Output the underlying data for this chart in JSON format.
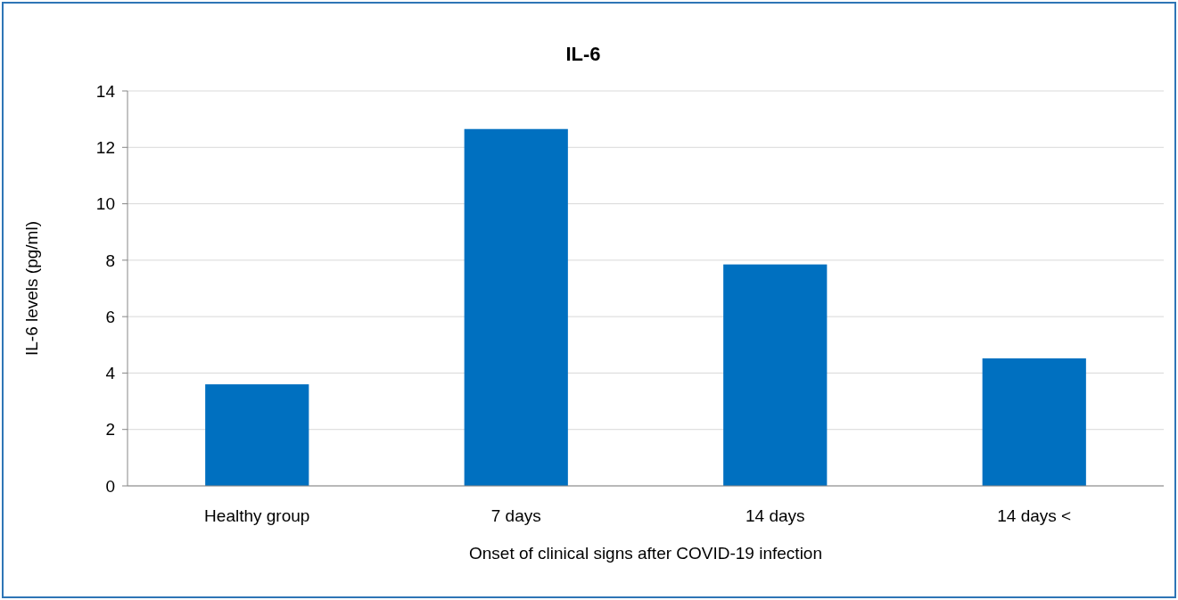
{
  "chart_data": {
    "type": "bar",
    "title": "IL-6",
    "xlabel": "Onset of clinical signs after COVID-19 infection",
    "ylabel": "IL-6 levels (pg/ml)",
    "categories": [
      "Healthy group",
      "7 days",
      "14 days",
      "14 days <"
    ],
    "values": [
      3.6,
      12.65,
      7.85,
      4.52
    ],
    "color": "#0070c0",
    "ylim": [
      0,
      14
    ],
    "yticks": [
      0,
      2,
      4,
      6,
      8,
      10,
      12,
      14
    ],
    "grid": "y"
  }
}
